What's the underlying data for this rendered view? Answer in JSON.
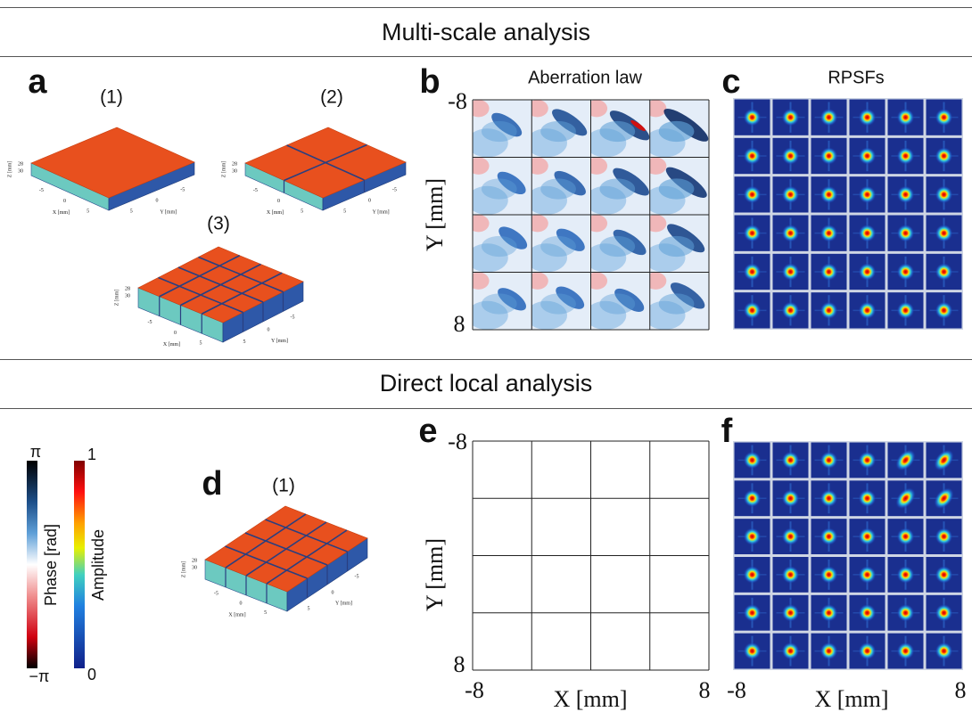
{
  "sections": [
    {
      "title": "Multi-scale analysis"
    },
    {
      "title": "Direct local analysis"
    }
  ],
  "panels": {
    "a": {
      "letter": "a",
      "subtitles": [
        "(1)",
        "(2)",
        "(3)"
      ]
    },
    "b": {
      "letter": "b",
      "title": "Aberration law",
      "y_label": "Y [mm]",
      "y_ticks": [
        "-8",
        "8"
      ]
    },
    "c": {
      "letter": "c",
      "title": "RPSFs"
    },
    "d": {
      "letter": "d",
      "subtitle": "(1)"
    },
    "e": {
      "letter": "e",
      "y_label": "Y [mm]",
      "y_ticks": [
        "-8",
        "8"
      ],
      "x_label": "X [mm]",
      "x_ticks": [
        "-8",
        "8"
      ]
    },
    "f": {
      "letter": "f",
      "x_label": "X [mm]",
      "x_ticks": [
        "-8",
        "8"
      ]
    }
  },
  "colorbars": [
    {
      "label": "Phase [rad]",
      "max": "π",
      "min": "−π"
    },
    {
      "label": "Amplitude",
      "max": "1",
      "min": "0"
    }
  ],
  "box_axes": {
    "z_label": "Z [mm]",
    "z_ticks": [
      "28",
      "30"
    ],
    "x_label": "X [mm]",
    "x_ticks": [
      "-5",
      "0",
      "5"
    ],
    "y_label": "Y [mm]",
    "y_ticks": [
      "5",
      "0",
      "-5"
    ]
  }
}
